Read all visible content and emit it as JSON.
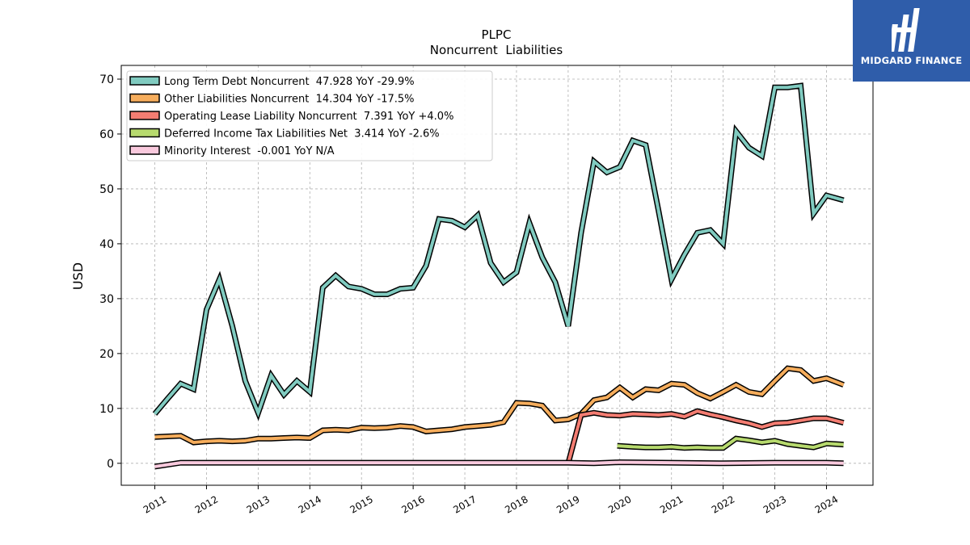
{
  "brand": {
    "name": "MIDGARD FINANCE",
    "logo_icon": "midgard-finance-logo-icon",
    "background_color": "#2f5daa"
  },
  "chart_data": {
    "type": "line",
    "title": "PLPC",
    "subtitle": "Noncurrent  Liabilities",
    "xlabel": "",
    "ylabel": "USD",
    "xlim": [
      2010.35,
      2024.9
    ],
    "ylim": [
      -4,
      72.5
    ],
    "yticks": [
      0,
      10,
      20,
      30,
      40,
      50,
      60,
      70
    ],
    "xticks": [
      2011,
      2012,
      2013,
      2014,
      2015,
      2016,
      2017,
      2018,
      2019,
      2020,
      2021,
      2022,
      2023,
      2024
    ],
    "grid": true,
    "legend_position": "top-left",
    "series": [
      {
        "name": "Long Term Debt Noncurrent",
        "legend_label": "Long Term Debt Noncurrent  47.928 YoY -29.9%",
        "color": "#80cbc0",
        "x": [
          2011.0,
          2011.25,
          2011.5,
          2011.75,
          2012.0,
          2012.25,
          2012.5,
          2012.75,
          2013.0,
          2013.25,
          2013.5,
          2013.75,
          2014.0,
          2014.25,
          2014.5,
          2014.75,
          2015.0,
          2015.25,
          2015.5,
          2015.75,
          2016.0,
          2016.25,
          2016.5,
          2016.75,
          2017.0,
          2017.25,
          2017.5,
          2017.75,
          2018.0,
          2018.25,
          2018.5,
          2018.75,
          2019.0,
          2019.25,
          2019.5,
          2019.75,
          2020.0,
          2020.25,
          2020.5,
          2020.75,
          2021.0,
          2021.25,
          2021.5,
          2021.75,
          2022.0,
          2022.25,
          2022.5,
          2022.75,
          2023.0,
          2023.25,
          2023.5,
          2023.75,
          2024.0,
          2024.33
        ],
        "values": [
          9.0,
          11.8,
          14.5,
          13.5,
          28.0,
          33.5,
          25.0,
          15.0,
          9.2,
          16.0,
          12.5,
          15.0,
          13.0,
          32.0,
          34.2,
          32.2,
          31.8,
          30.8,
          30.8,
          31.8,
          32.0,
          36.0,
          44.5,
          44.2,
          43.0,
          45.2,
          36.5,
          33.0,
          34.8,
          43.8,
          37.5,
          33.0,
          25.0,
          42.0,
          55.0,
          53.0,
          54.0,
          58.8,
          58.0,
          46.0,
          33.5,
          38.0,
          42.0,
          42.5,
          40.0,
          60.5,
          57.5,
          56.0,
          68.5,
          68.5,
          68.8,
          45.5,
          48.8,
          47.928
        ]
      },
      {
        "name": "Other Liabilities Noncurrent",
        "legend_label": "Other Liabilities Noncurrent  14.304 YoY -17.5%",
        "color": "#f6ad5c",
        "x": [
          2011.0,
          2011.25,
          2011.5,
          2011.75,
          2012.0,
          2012.25,
          2012.5,
          2012.75,
          2013.0,
          2013.25,
          2013.5,
          2013.75,
          2014.0,
          2014.25,
          2014.5,
          2014.75,
          2015.0,
          2015.25,
          2015.5,
          2015.75,
          2016.0,
          2016.25,
          2016.5,
          2016.75,
          2017.0,
          2017.25,
          2017.5,
          2017.75,
          2018.0,
          2018.25,
          2018.5,
          2018.75,
          2019.0,
          2019.25,
          2019.5,
          2019.75,
          2020.0,
          2020.25,
          2020.5,
          2020.75,
          2021.0,
          2021.25,
          2021.5,
          2021.75,
          2022.0,
          2022.25,
          2022.5,
          2022.75,
          2023.0,
          2023.25,
          2023.5,
          2023.75,
          2024.0,
          2024.33
        ],
        "values": [
          4.8,
          4.9,
          5.0,
          3.8,
          4.0,
          4.1,
          4.0,
          4.1,
          4.5,
          4.5,
          4.6,
          4.7,
          4.6,
          6.0,
          6.1,
          6.0,
          6.5,
          6.4,
          6.5,
          6.8,
          6.6,
          5.8,
          6.0,
          6.2,
          6.6,
          6.8,
          7.0,
          7.5,
          11.0,
          10.9,
          10.5,
          7.8,
          8.0,
          9.0,
          11.5,
          12.0,
          13.8,
          12.0,
          13.5,
          13.3,
          14.5,
          14.3,
          12.8,
          11.8,
          13.0,
          14.3,
          13.0,
          12.6,
          15.0,
          17.3,
          17.0,
          15.0,
          15.5,
          14.304
        ]
      },
      {
        "name": "Operating Lease Liability Noncurrent",
        "legend_label": "Operating Lease Liability Noncurrent  7.391 YoY +4.0%",
        "color": "#f47d72",
        "x": [
          2019.0,
          2019.25,
          2019.5,
          2019.75,
          2020.0,
          2020.25,
          2020.5,
          2020.75,
          2021.0,
          2021.25,
          2021.5,
          2021.75,
          2022.0,
          2022.25,
          2022.5,
          2022.75,
          2023.0,
          2023.25,
          2023.5,
          2023.75,
          2024.0,
          2024.33
        ],
        "values": [
          0.0,
          8.8,
          9.2,
          8.8,
          8.7,
          9.0,
          8.9,
          8.8,
          9.0,
          8.5,
          9.5,
          8.9,
          8.4,
          7.8,
          7.3,
          6.6,
          7.3,
          7.4,
          7.8,
          8.2,
          8.2,
          7.391
        ]
      },
      {
        "name": "Deferred Income Tax Liabilities Net",
        "legend_label": "Deferred Income Tax Liabilities Net  3.414 YoY -2.6%",
        "color": "#b7da6e",
        "x": [
          2019.95,
          2020.25,
          2020.5,
          2020.75,
          2021.0,
          2021.25,
          2021.5,
          2021.75,
          2022.0,
          2022.25,
          2022.5,
          2022.75,
          2023.0,
          2023.25,
          2023.5,
          2023.75,
          2024.0,
          2024.33
        ],
        "values": [
          3.2,
          3.0,
          2.9,
          2.9,
          3.0,
          2.8,
          2.9,
          2.8,
          2.8,
          4.5,
          4.2,
          3.8,
          4.1,
          3.5,
          3.2,
          2.9,
          3.6,
          3.414
        ]
      },
      {
        "name": "Minority Interest",
        "legend_label": "Minority Interest  -0.001 YoY N/A",
        "color": "#f9c9dd",
        "x": [
          2011.0,
          2011.5,
          2012.0,
          2013.0,
          2014.0,
          2015.0,
          2016.0,
          2017.0,
          2018.0,
          2019.0,
          2019.5,
          2020.0,
          2021.0,
          2022.0,
          2023.0,
          2024.0,
          2024.33
        ],
        "values": [
          -0.6,
          0.1,
          0.1,
          0.1,
          0.1,
          0.1,
          0.1,
          0.1,
          0.1,
          0.1,
          0.0,
          0.2,
          0.1,
          0.0,
          0.1,
          0.1,
          -0.001
        ]
      }
    ]
  }
}
